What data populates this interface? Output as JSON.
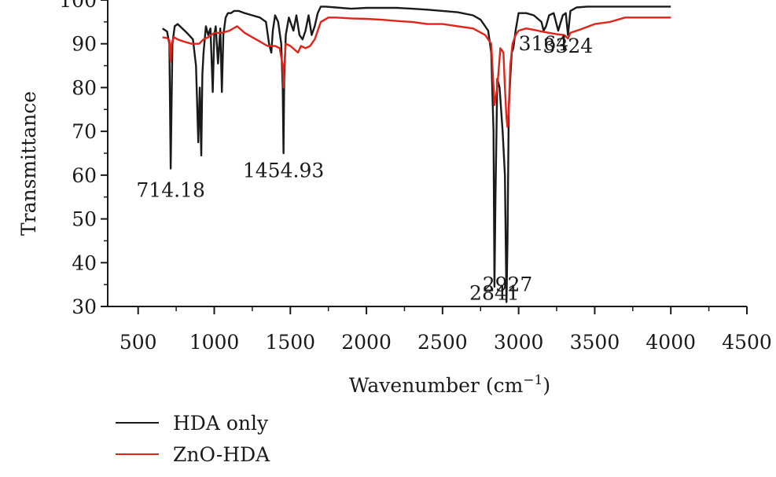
{
  "chart_data": {
    "type": "line",
    "title": "",
    "xlabel": "Wavenumber (cm",
    "xlabel_sup": "−1",
    "xlabel_close": ")",
    "ylabel": "Transmittance",
    "xlim": [
      300,
      4500
    ],
    "ylim": [
      30,
      100
    ],
    "x_ticks": [
      500,
      1000,
      1500,
      2000,
      2500,
      3000,
      3500,
      4000,
      4500
    ],
    "x_tick_labels": [
      "500",
      "1000",
      "1500",
      "2000",
      "2500",
      "3000",
      "3500",
      "4000",
      "4500"
    ],
    "y_ticks": [
      30,
      40,
      50,
      60,
      70,
      80,
      90,
      100
    ],
    "y_tick_labels": [
      "30",
      "40",
      "50",
      "60",
      "70",
      "80",
      "90",
      "100"
    ],
    "grid": false,
    "legend_position": "bottom-left",
    "series": [
      {
        "name": "HDA only",
        "color": "#1a1a1a",
        "x": [
          660,
          690,
          705,
          714,
          718,
          725,
          740,
          760,
          790,
          820,
          860,
          880,
          895,
          905,
          915,
          922,
          930,
          945,
          960,
          975,
          990,
          1000,
          1010,
          1025,
          1040,
          1050,
          1060,
          1075,
          1090,
          1110,
          1130,
          1160,
          1200,
          1250,
          1300,
          1340,
          1360,
          1375,
          1385,
          1400,
          1420,
          1440,
          1450,
          1455,
          1460,
          1470,
          1490,
          1520,
          1540,
          1560,
          1580,
          1600,
          1620,
          1640,
          1660,
          1680,
          1700,
          1730,
          1800,
          1900,
          2000,
          2100,
          2200,
          2300,
          2400,
          2500,
          2600,
          2700,
          2750,
          2800,
          2820,
          2835,
          2841,
          2848,
          2860,
          2875,
          2895,
          2910,
          2920,
          2927,
          2935,
          2945,
          2955,
          2965,
          2980,
          3000,
          3050,
          3100,
          3150,
          3164,
          3180,
          3200,
          3230,
          3260,
          3290,
          3310,
          3324,
          3340,
          3380,
          3450,
          3550,
          3700,
          3850,
          4000
        ],
        "y": [
          93.5,
          92.8,
          90,
          61.5,
          72,
          90,
          94,
          94.5,
          93.5,
          92.5,
          91,
          85,
          67.5,
          80,
          64.5,
          83,
          88,
          94,
          92,
          93.5,
          79,
          92,
          94,
          85.5,
          93.5,
          79,
          92,
          96,
          97,
          97,
          97.5,
          97.5,
          97,
          96.5,
          96,
          95,
          90,
          88,
          93,
          96.5,
          95,
          90,
          80,
          65,
          82,
          92,
          96,
          93,
          96.5,
          92,
          91,
          93,
          96.5,
          92,
          94,
          97,
          98.5,
          98.5,
          98.3,
          98,
          98.2,
          98.2,
          98.2,
          98,
          97.8,
          97.5,
          97.2,
          96.5,
          95.5,
          93,
          88,
          70,
          34.5,
          55,
          82,
          80,
          70,
          60,
          31,
          45,
          75,
          82,
          88,
          89,
          93,
          97,
          97,
          96.5,
          95,
          93,
          94,
          96.5,
          97,
          93,
          96.5,
          97,
          92,
          97.5,
          98.3,
          98.5,
          98.5,
          98.5,
          98.5,
          98.5
        ]
      },
      {
        "name": "ZnO-HDA",
        "color": "#e2231a",
        "x": [
          660,
          690,
          705,
          714,
          720,
          735,
          760,
          800,
          850,
          900,
          930,
          960,
          1000,
          1050,
          1100,
          1150,
          1200,
          1250,
          1300,
          1350,
          1400,
          1430,
          1450,
          1455,
          1460,
          1470,
          1500,
          1550,
          1570,
          1600,
          1630,
          1660,
          1700,
          1750,
          1800,
          1900,
          2000,
          2100,
          2200,
          2300,
          2400,
          2500,
          2600,
          2700,
          2780,
          2820,
          2841,
          2860,
          2880,
          2900,
          2910,
          2920,
          2927,
          2935,
          2945,
          2960,
          2980,
          3000,
          3050,
          3100,
          3150,
          3200,
          3250,
          3300,
          3324,
          3340,
          3400,
          3500,
          3600,
          3700,
          3800,
          3900,
          4000
        ],
        "y": [
          91.5,
          91.3,
          90.8,
          86,
          90,
          91.5,
          91,
          90.5,
          90,
          90,
          91,
          91.5,
          92.5,
          92.5,
          93,
          94,
          92.5,
          91.5,
          90.5,
          89.5,
          89.5,
          89,
          85,
          80,
          85,
          90,
          89.5,
          88,
          89.5,
          89,
          89.5,
          91,
          95,
          96,
          96,
          95.8,
          95.7,
          95.5,
          95.2,
          95,
          94.5,
          94.5,
          94,
          93.5,
          92,
          90,
          76,
          80,
          89,
          88,
          80,
          73,
          71,
          75,
          85,
          90,
          92,
          93,
          93.5,
          93.2,
          92.8,
          92.5,
          92.2,
          92,
          91.2,
          92.5,
          93.2,
          94.5,
          95,
          96,
          96,
          96,
          96
        ]
      }
    ],
    "annotations": [
      {
        "text": "714.18",
        "x": 714,
        "y": 55
      },
      {
        "text": "1454.93",
        "x": 1455,
        "y": 59.5
      },
      {
        "text": "2841",
        "x": 2841,
        "y": 31.5
      },
      {
        "text": "2927",
        "x": 2927,
        "y": 33.5
      },
      {
        "text": "3164",
        "x": 3164,
        "y": 88.5
      },
      {
        "text": "3324",
        "x": 3324,
        "y": 88
      }
    ]
  }
}
